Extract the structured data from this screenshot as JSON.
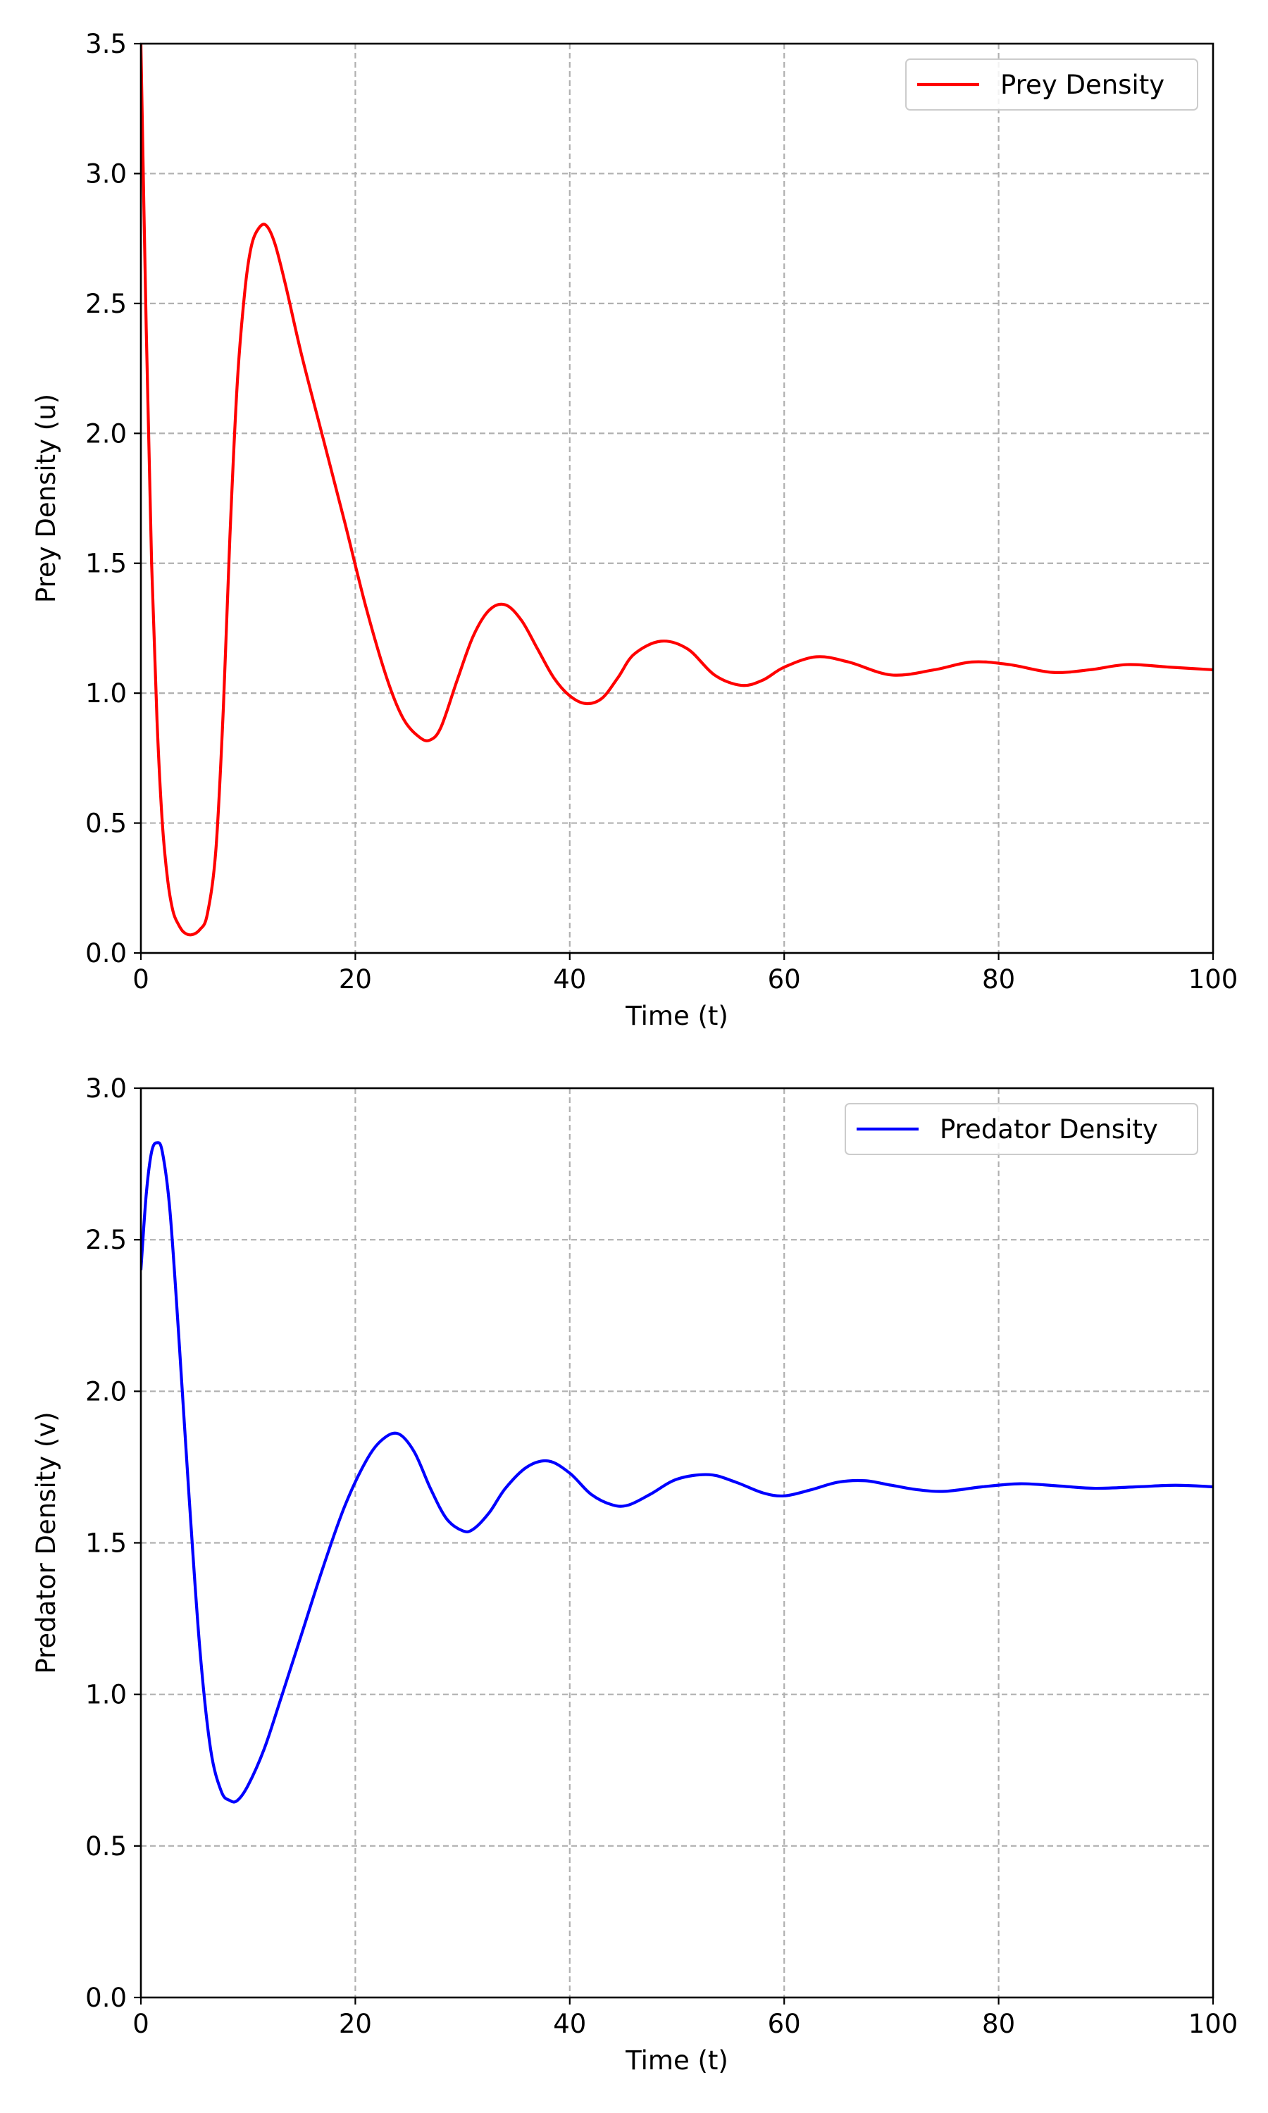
{
  "chart_data": [
    {
      "type": "line",
      "title": "",
      "xlabel": "Time (t)",
      "ylabel": "Prey Density (u)",
      "xlim": [
        0,
        100
      ],
      "ylim": [
        0,
        3.5
      ],
      "xticks": [
        "0",
        "20",
        "40",
        "60",
        "80",
        "100"
      ],
      "yticks": [
        "0.0",
        "0.5",
        "1.0",
        "1.5",
        "2.0",
        "2.5",
        "3.0",
        "3.5"
      ],
      "grid": true,
      "legend_position": "top-right",
      "series": [
        {
          "name": "Prey Density",
          "color": "#ff0000",
          "x": [
            0,
            0.5,
            1,
            1.5,
            2,
            2.5,
            3,
            3.5,
            4,
            4.7,
            5.5,
            6.2,
            7,
            7.7,
            8.3,
            9,
            9.7,
            10.3,
            11,
            11.7,
            12.5,
            13.5,
            15,
            17,
            19,
            21,
            23,
            24.5,
            26,
            27,
            28,
            29.5,
            31,
            32.5,
            34,
            35.5,
            37,
            38.5,
            40,
            41.5,
            43,
            44.5,
            46,
            48.5,
            51,
            53.5,
            56,
            58,
            60,
            63,
            66,
            70,
            74,
            77.5,
            81,
            85,
            88.5,
            92,
            96,
            100
          ],
          "values": [
            3.5,
            2.4,
            1.5,
            0.9,
            0.5,
            0.28,
            0.16,
            0.11,
            0.08,
            0.07,
            0.09,
            0.15,
            0.4,
            0.95,
            1.6,
            2.2,
            2.55,
            2.72,
            2.79,
            2.8,
            2.73,
            2.57,
            2.3,
            1.98,
            1.66,
            1.33,
            1.05,
            0.9,
            0.83,
            0.82,
            0.87,
            1.05,
            1.22,
            1.32,
            1.34,
            1.28,
            1.17,
            1.06,
            0.99,
            0.96,
            0.98,
            1.06,
            1.15,
            1.2,
            1.17,
            1.07,
            1.03,
            1.05,
            1.1,
            1.14,
            1.12,
            1.07,
            1.09,
            1.12,
            1.11,
            1.08,
            1.09,
            1.11,
            1.1,
            1.09
          ]
        }
      ]
    },
    {
      "type": "line",
      "title": "",
      "xlabel": "Time (t)",
      "ylabel": "Predator Density (v)",
      "xlim": [
        0,
        100
      ],
      "ylim": [
        0,
        3.0
      ],
      "xticks": [
        "0",
        "20",
        "40",
        "60",
        "80",
        "100"
      ],
      "yticks": [
        "0.0",
        "0.5",
        "1.0",
        "1.5",
        "2.0",
        "2.5",
        "3.0"
      ],
      "grid": true,
      "legend_position": "top-right",
      "series": [
        {
          "name": "Predator Density",
          "color": "#0000ff",
          "x": [
            0,
            0.5,
            1,
            1.5,
            2,
            2.7,
            3.5,
            4.5,
            5.5,
            6.5,
            7.5,
            8.3,
            9,
            10,
            11.5,
            13,
            15,
            17,
            19,
            21,
            22.5,
            24,
            25.5,
            27,
            28.5,
            30,
            31,
            32.5,
            34,
            36,
            38,
            40,
            42,
            44,
            45.5,
            47.5,
            50,
            53,
            55.5,
            58,
            60,
            62.5,
            65,
            67.5,
            70,
            72.5,
            75,
            78.5,
            82,
            85.5,
            89,
            93,
            96.5,
            100
          ],
          "values": [
            2.4,
            2.65,
            2.79,
            2.82,
            2.79,
            2.6,
            2.2,
            1.65,
            1.15,
            0.82,
            0.68,
            0.65,
            0.65,
            0.7,
            0.82,
            0.98,
            1.2,
            1.42,
            1.62,
            1.77,
            1.84,
            1.86,
            1.8,
            1.68,
            1.58,
            1.54,
            1.545,
            1.6,
            1.68,
            1.75,
            1.77,
            1.73,
            1.66,
            1.625,
            1.625,
            1.66,
            1.71,
            1.725,
            1.7,
            1.665,
            1.655,
            1.675,
            1.7,
            1.705,
            1.69,
            1.675,
            1.67,
            1.685,
            1.695,
            1.688,
            1.68,
            1.685,
            1.69,
            1.685
          ]
        }
      ]
    }
  ]
}
